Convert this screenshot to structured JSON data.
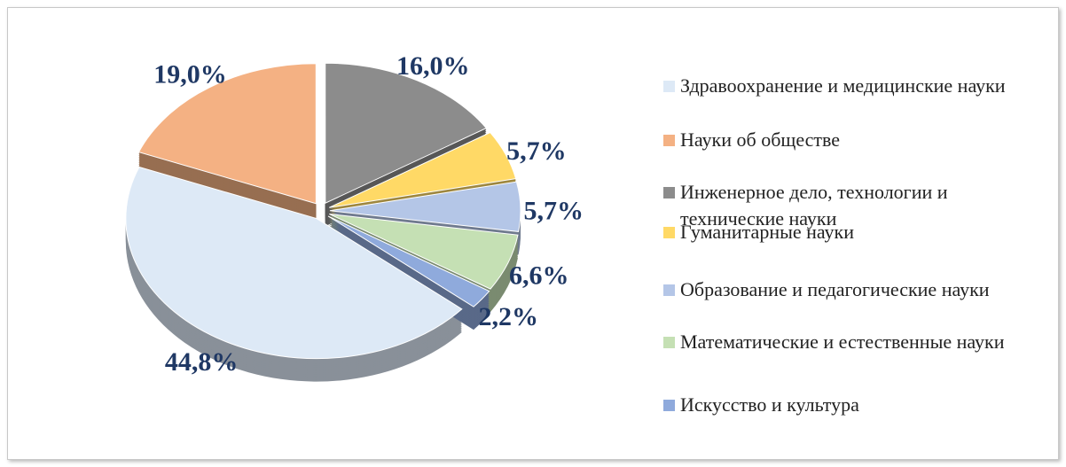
{
  "chart_data": {
    "type": "pie",
    "categories": [
      "Здравоохранение и медицинские науки",
      "Науки об обществе",
      "Инженерное дело, технологии и технические науки",
      "Гуманитарные науки",
      "Образование и педагогические науки",
      "Математические и естественные науки",
      "Искусство и культура"
    ],
    "values": [
      44.8,
      19.0,
      16.0,
      5.7,
      5.7,
      6.6,
      2.2
    ],
    "value_labels": [
      "44,8%",
      "19,0%",
      "16,0%",
      "5,7%",
      "5,7%",
      "6,6%",
      "2,2%"
    ],
    "colors": [
      "#dde9f6",
      "#f4b183",
      "#8c8c8c",
      "#ffd966",
      "#b4c6e7",
      "#c5e0b4",
      "#8faadc"
    ],
    "legend": "right"
  }
}
